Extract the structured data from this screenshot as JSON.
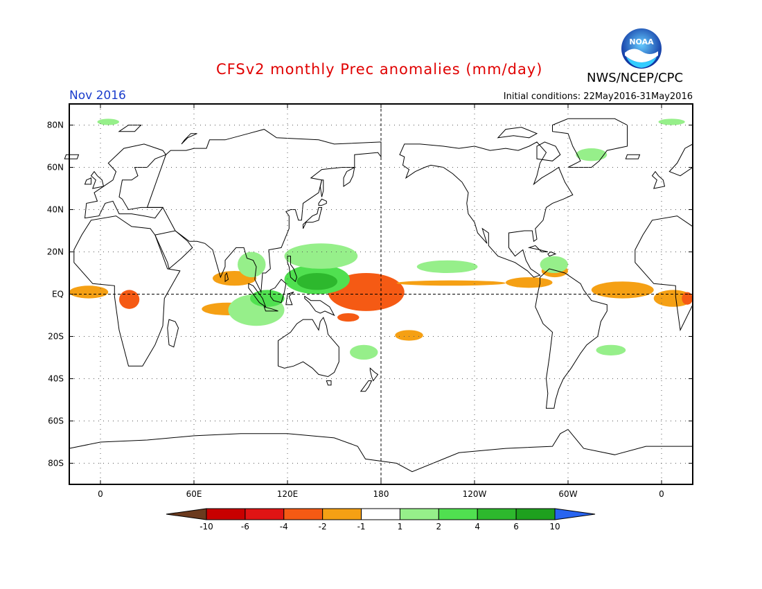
{
  "header": {
    "title": "CFSv2 monthly Prec anomalies (mm/day)",
    "agency": "NWS/NCEP/CPC",
    "month": "Nov 2016",
    "initial_conditions": "Initial conditions: 22May2016-31May2016"
  },
  "logo": {
    "text": "NOAA"
  },
  "map": {
    "projection": "equirectangular",
    "lon_range": [
      -20,
      380
    ],
    "lat_range": [
      -90,
      90
    ],
    "lat_ticks": [
      {
        "value": 80,
        "label": "80N"
      },
      {
        "value": 60,
        "label": "60N"
      },
      {
        "value": 40,
        "label": "40N"
      },
      {
        "value": 20,
        "label": "20N"
      },
      {
        "value": 0,
        "label": "EQ"
      },
      {
        "value": -20,
        "label": "20S"
      },
      {
        "value": -40,
        "label": "40S"
      },
      {
        "value": -60,
        "label": "60S"
      },
      {
        "value": -80,
        "label": "80S"
      }
    ],
    "lon_ticks": [
      {
        "value": 0,
        "label": "0"
      },
      {
        "value": 60,
        "label": "60E"
      },
      {
        "value": 120,
        "label": "120E"
      },
      {
        "value": 180,
        "label": "180"
      },
      {
        "value": 240,
        "label": "120W"
      },
      {
        "value": 300,
        "label": "60W"
      },
      {
        "value": 360,
        "label": "0"
      }
    ],
    "grid": "dotted",
    "reference_lines": {
      "equator": 0,
      "dateline": 180
    },
    "continent_outline_color": "#000000"
  },
  "legend": {
    "unit": "mm/day",
    "boundaries": [
      "-10",
      "-6",
      "-4",
      "-2",
      "-1",
      "1",
      "2",
      "4",
      "6",
      "10"
    ],
    "colors": [
      "#6b3a1e",
      "#c80000",
      "#e01414",
      "#f55a14",
      "#f5a014",
      "#ffffff",
      "#96ef8a",
      "#50e050",
      "#2db82d",
      "#1ea01e",
      "#2864f0"
    ]
  },
  "anomaly_regions": [
    {
      "level": "strong-negative",
      "color": "#c80000",
      "lon": [
        158,
        182
      ],
      "lat": [
        -4,
        8
      ]
    },
    {
      "level": "negative",
      "color": "#f55a14",
      "lon": [
        146,
        195
      ],
      "lat": [
        -8,
        10
      ]
    },
    {
      "level": "negative",
      "color": "#f55a14",
      "lon": [
        152,
        166
      ],
      "lat": [
        -13,
        -9
      ]
    },
    {
      "level": "weak-negative",
      "color": "#f5a014",
      "lon": [
        190,
        260
      ],
      "lat": [
        4,
        6.5
      ]
    },
    {
      "level": "weak-negative",
      "color": "#f5a014",
      "lon": [
        260,
        290
      ],
      "lat": [
        3,
        8
      ]
    },
    {
      "level": "weak-negative",
      "color": "#f5a014",
      "lon": [
        315,
        355
      ],
      "lat": [
        -2,
        6
      ]
    },
    {
      "level": "weak-negative",
      "color": "#f5a014",
      "lon": [
        -20,
        5
      ],
      "lat": [
        -2,
        4
      ]
    },
    {
      "level": "weak-negative",
      "color": "#f5a014",
      "lon": [
        355,
        380
      ],
      "lat": [
        -6,
        2
      ]
    },
    {
      "level": "negative",
      "color": "#f55a14",
      "lon": [
        12,
        25
      ],
      "lat": [
        -7,
        2
      ]
    },
    {
      "level": "negative",
      "color": "#f55a14",
      "lon": [
        373,
        380
      ],
      "lat": [
        -5,
        1
      ]
    },
    {
      "level": "weak-negative",
      "color": "#f5a014",
      "lon": [
        72,
        100
      ],
      "lat": [
        4,
        11
      ]
    },
    {
      "level": "weak-negative",
      "color": "#f5a014",
      "lon": [
        65,
        98
      ],
      "lat": [
        -10,
        -4
      ]
    },
    {
      "level": "weak-negative",
      "color": "#f5a014",
      "lon": [
        189,
        207
      ],
      "lat": [
        -22,
        -17
      ]
    },
    {
      "level": "weak-negative",
      "color": "#f5a014",
      "lon": [
        283,
        300
      ],
      "lat": [
        8,
        14
      ]
    },
    {
      "level": "weak-positive",
      "color": "#96ef8a",
      "lon": [
        82,
        118
      ],
      "lat": [
        -15,
        0
      ]
    },
    {
      "level": "positive",
      "color": "#50e050",
      "lon": [
        96,
        118
      ],
      "lat": [
        -6,
        2
      ]
    },
    {
      "level": "positive",
      "color": "#50e050",
      "lon": [
        118,
        160
      ],
      "lat": [
        0,
        14
      ]
    },
    {
      "level": "strong-positive",
      "color": "#2db82d",
      "lon": [
        126,
        152
      ],
      "lat": [
        2,
        10
      ]
    },
    {
      "level": "weak-positive",
      "color": "#96ef8a",
      "lon": [
        118,
        165
      ],
      "lat": [
        12,
        24
      ]
    },
    {
      "level": "weak-positive",
      "color": "#96ef8a",
      "lon": [
        88,
        106
      ],
      "lat": [
        8,
        20
      ]
    },
    {
      "level": "weak-positive",
      "color": "#96ef8a",
      "lon": [
        203,
        242
      ],
      "lat": [
        10,
        16
      ]
    },
    {
      "level": "weak-positive",
      "color": "#96ef8a",
      "lon": [
        282,
        300
      ],
      "lat": [
        10,
        18
      ]
    },
    {
      "level": "weak-positive",
      "color": "#96ef8a",
      "lon": [
        318,
        337
      ],
      "lat": [
        -29,
        -24
      ]
    },
    {
      "level": "weak-positive",
      "color": "#96ef8a",
      "lon": [
        160,
        178
      ],
      "lat": [
        -31,
        -24
      ]
    },
    {
      "level": "weak-positive",
      "color": "#96ef8a",
      "lon": [
        -2,
        12
      ],
      "lat": [
        80,
        83
      ]
    },
    {
      "level": "weak-positive",
      "color": "#96ef8a",
      "lon": [
        358,
        375
      ],
      "lat": [
        80,
        83
      ]
    },
    {
      "level": "weak-positive",
      "color": "#96ef8a",
      "lon": [
        305,
        325
      ],
      "lat": [
        63,
        69
      ]
    }
  ]
}
